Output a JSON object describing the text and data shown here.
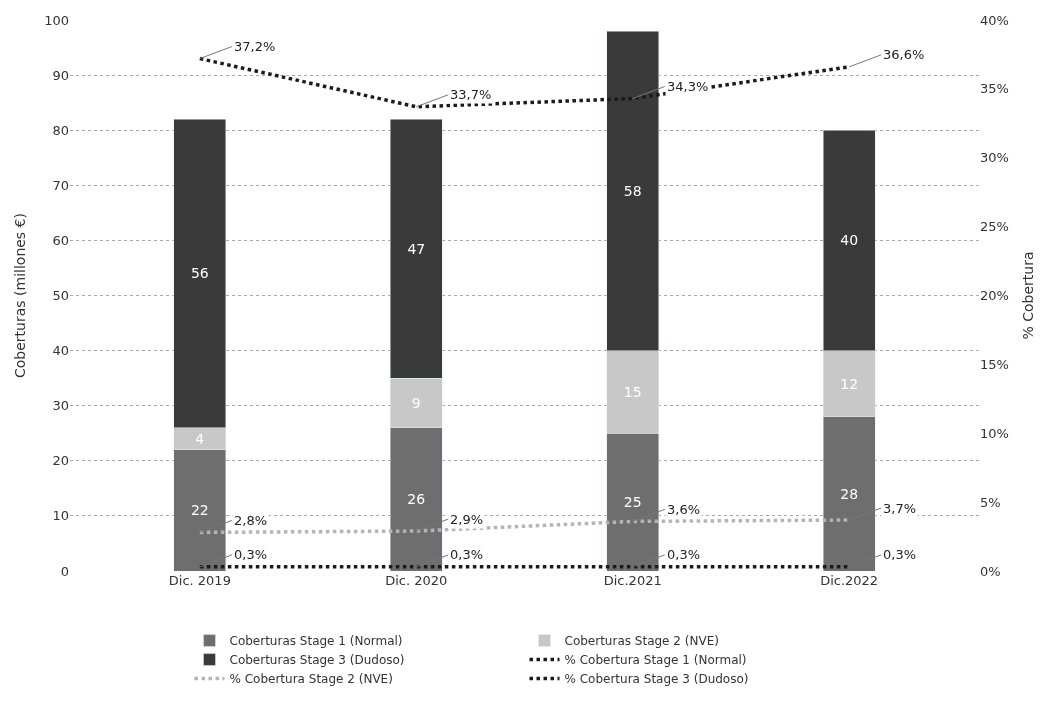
{
  "chart_data": {
    "type": "bar",
    "stacked": true,
    "categories": [
      "Dic. 2019",
      "Dic. 2020",
      "Dic.2021",
      "Dic.2022"
    ],
    "ylabel": "Coberturas (millones €)",
    "y2label": "% Cobertura",
    "ylim": [
      0,
      100
    ],
    "yticks": [
      0,
      10,
      20,
      30,
      40,
      50,
      60,
      70,
      80,
      90,
      100
    ],
    "y2lim": [
      0,
      40
    ],
    "y2ticks": [
      {
        "value": 0,
        "label": "0%"
      },
      {
        "value": 5,
        "label": "5%"
      },
      {
        "value": 10,
        "label": "10%"
      },
      {
        "value": 15,
        "label": "15%"
      },
      {
        "value": 20,
        "label": "20%"
      },
      {
        "value": 25,
        "label": "25%"
      },
      {
        "value": 30,
        "label": "30%"
      },
      {
        "value": 35,
        "label": "35%"
      },
      {
        "value": 40,
        "label": "40%"
      }
    ],
    "grid": "y",
    "legend": "bottom",
    "data_labels": true,
    "series": [
      {
        "name": "Coberturas Stage 1 (Normal)",
        "color": "#6e6e6e",
        "values": [
          22,
          26,
          25,
          28
        ]
      },
      {
        "name": "Coberturas Stage 2 (NVE)",
        "color": "#c8c8c8",
        "values": [
          4,
          9,
          15,
          12
        ]
      },
      {
        "name": "Coberturas Stage 3 (Dudoso)",
        "color": "#3a3a3a",
        "values": [
          56,
          47,
          58,
          40
        ]
      },
      {
        "name": "% Cobertura Stage 1 (Normal)",
        "type": "line",
        "axis": "y2",
        "color": "#1a1a1a",
        "line_style": "dotted",
        "values": [
          0.3,
          0.3,
          0.3,
          0.3
        ],
        "value_labels": [
          "0,3%",
          "0,3%",
          "0,3%",
          "0,3%"
        ]
      },
      {
        "name": "% Cobertura Stage 2 (NVE)",
        "type": "line",
        "axis": "y2",
        "color": "#b4b4b4",
        "line_style": "dotted",
        "values": [
          2.8,
          2.9,
          3.6,
          3.7
        ],
        "value_labels": [
          "2,8%",
          "2,9%",
          "3,6%",
          "3,7%"
        ]
      },
      {
        "name": "% Cobertura Stage 3 (Dudoso)",
        "type": "line",
        "axis": "y2",
        "color": "#1a1a1a",
        "line_style": "dotted",
        "values": [
          37.2,
          33.7,
          34.3,
          36.6
        ],
        "value_labels": [
          "37,2%",
          "33,7%",
          "34,3%",
          "36,6%"
        ]
      }
    ]
  }
}
